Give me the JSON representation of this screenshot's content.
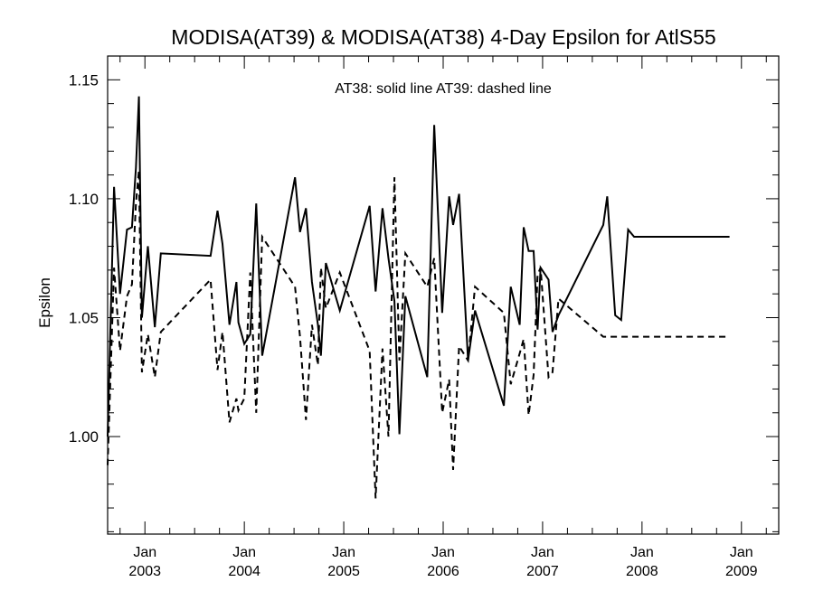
{
  "chart_data": {
    "type": "line",
    "title": "MODISA(AT39) & MODISA(AT38) 4-Day Epsilon for AtlS55",
    "annotation": "AT38: solid line   AT39: dashed line",
    "xlabel": "",
    "ylabel": "Epsilon",
    "xlim": [
      2002.625,
      2009.375
    ],
    "ylim": [
      0.959,
      1.16
    ],
    "yticks": [
      1.0,
      1.05,
      1.1,
      1.15
    ],
    "ytick_labels": [
      "1.00",
      "1.05",
      "1.10",
      "1.15"
    ],
    "xticks": [
      {
        "x": 2003.0,
        "month": "Jan",
        "year": "2003"
      },
      {
        "x": 2004.0,
        "month": "Jan",
        "year": "2004"
      },
      {
        "x": 2005.0,
        "month": "Jan",
        "year": "2005"
      },
      {
        "x": 2006.0,
        "month": "Jan",
        "year": "2006"
      },
      {
        "x": 2007.0,
        "month": "Jan",
        "year": "2007"
      },
      {
        "x": 2008.0,
        "month": "Jan",
        "year": "2008"
      },
      {
        "x": 2009.0,
        "month": "Jan",
        "year": "2009"
      }
    ],
    "series": [
      {
        "style": "solid",
        "x": [
          2002.625,
          2002.69,
          2002.75,
          2002.82,
          2002.87,
          2002.91,
          2002.94,
          2002.97,
          2003.03,
          2003.1,
          2003.16,
          2003.66,
          2003.73,
          2003.78,
          2003.85,
          2003.92,
          2003.94,
          2004.0,
          2004.06,
          2004.12,
          2004.18,
          2004.51,
          2004.56,
          2004.62,
          2004.68,
          2004.74,
          2004.77,
          2004.82,
          2004.96,
          2005.26,
          2005.32,
          2005.39,
          2005.45,
          2005.51,
          2005.56,
          2005.62,
          2005.84,
          2005.91,
          2005.99,
          2006.06,
          2006.1,
          2006.16,
          2006.25,
          2006.32,
          2006.61,
          2006.68,
          2006.77,
          2006.81,
          2006.86,
          2006.91,
          2006.95,
          2006.98,
          2007.06,
          2007.1,
          2007.16,
          2007.61,
          2007.65,
          2007.73,
          2007.79,
          2007.86,
          2007.92,
          2007.96,
          2008.04,
          2008.07,
          2008.17,
          2008.26,
          2008.27,
          2008.33,
          2008.78,
          2008.88
        ],
        "y": [
          1.0,
          1.105,
          1.06,
          1.087,
          1.088,
          1.113,
          1.143,
          1.05,
          1.08,
          1.046,
          1.077,
          1.076,
          1.095,
          1.081,
          1.047,
          1.065,
          1.048,
          1.039,
          1.043,
          1.098,
          1.034,
          1.109,
          1.086,
          1.096,
          1.065,
          1.047,
          1.034,
          1.073,
          1.053,
          1.097,
          1.061,
          1.096,
          1.075,
          1.057,
          1.001,
          1.059,
          1.025,
          1.131,
          1.052,
          1.101,
          1.089,
          1.102,
          1.032,
          1.053,
          1.013,
          1.063,
          1.047,
          1.088,
          1.078,
          1.078,
          1.045,
          1.071,
          1.066,
          1.044,
          1.051,
          1.089,
          1.101,
          1.051,
          1.049,
          1.087,
          1.084,
          1.084,
          1.084,
          1.084,
          1.084,
          1.084,
          1.084,
          1.084,
          1.084,
          1.084
        ]
      },
      {
        "style": "dashed",
        "x": [
          2002.625,
          2002.69,
          2002.75,
          2002.82,
          2002.87,
          2002.91,
          2002.94,
          2002.97,
          2003.03,
          2003.1,
          2003.16,
          2003.66,
          2003.73,
          2003.78,
          2003.85,
          2003.92,
          2003.94,
          2004.0,
          2004.06,
          2004.12,
          2004.18,
          2004.51,
          2004.56,
          2004.62,
          2004.68,
          2004.74,
          2004.77,
          2004.82,
          2004.96,
          2005.26,
          2005.32,
          2005.39,
          2005.45,
          2005.51,
          2005.56,
          2005.62,
          2005.84,
          2005.91,
          2005.99,
          2006.06,
          2006.1,
          2006.16,
          2006.25,
          2006.32,
          2006.61,
          2006.68,
          2006.77,
          2006.81,
          2006.86,
          2006.91,
          2006.95,
          2006.98,
          2007.06,
          2007.1,
          2007.16,
          2007.61,
          2007.65,
          2007.73,
          2007.79,
          2007.86,
          2007.92,
          2007.96,
          2008.04,
          2008.07,
          2008.17,
          2008.26,
          2008.27,
          2008.33,
          2008.78,
          2008.88
        ],
        "y": [
          0.988,
          1.071,
          1.036,
          1.059,
          1.064,
          1.098,
          1.112,
          1.027,
          1.043,
          1.025,
          1.044,
          1.066,
          1.028,
          1.044,
          1.006,
          1.016,
          1.011,
          1.016,
          1.069,
          1.01,
          1.084,
          1.063,
          1.042,
          1.007,
          1.047,
          1.03,
          1.071,
          1.054,
          1.069,
          1.036,
          0.974,
          1.037,
          1.0,
          1.109,
          1.032,
          1.077,
          1.063,
          1.075,
          1.01,
          1.024,
          0.986,
          1.038,
          1.032,
          1.063,
          1.052,
          1.022,
          1.035,
          1.041,
          1.009,
          1.026,
          1.068,
          1.071,
          1.025,
          1.027,
          1.058,
          1.042,
          1.042,
          1.042,
          1.042,
          1.042,
          1.042,
          1.042,
          1.042,
          1.042,
          1.042,
          1.042,
          1.042,
          1.042,
          1.042,
          1.042
        ]
      }
    ]
  }
}
